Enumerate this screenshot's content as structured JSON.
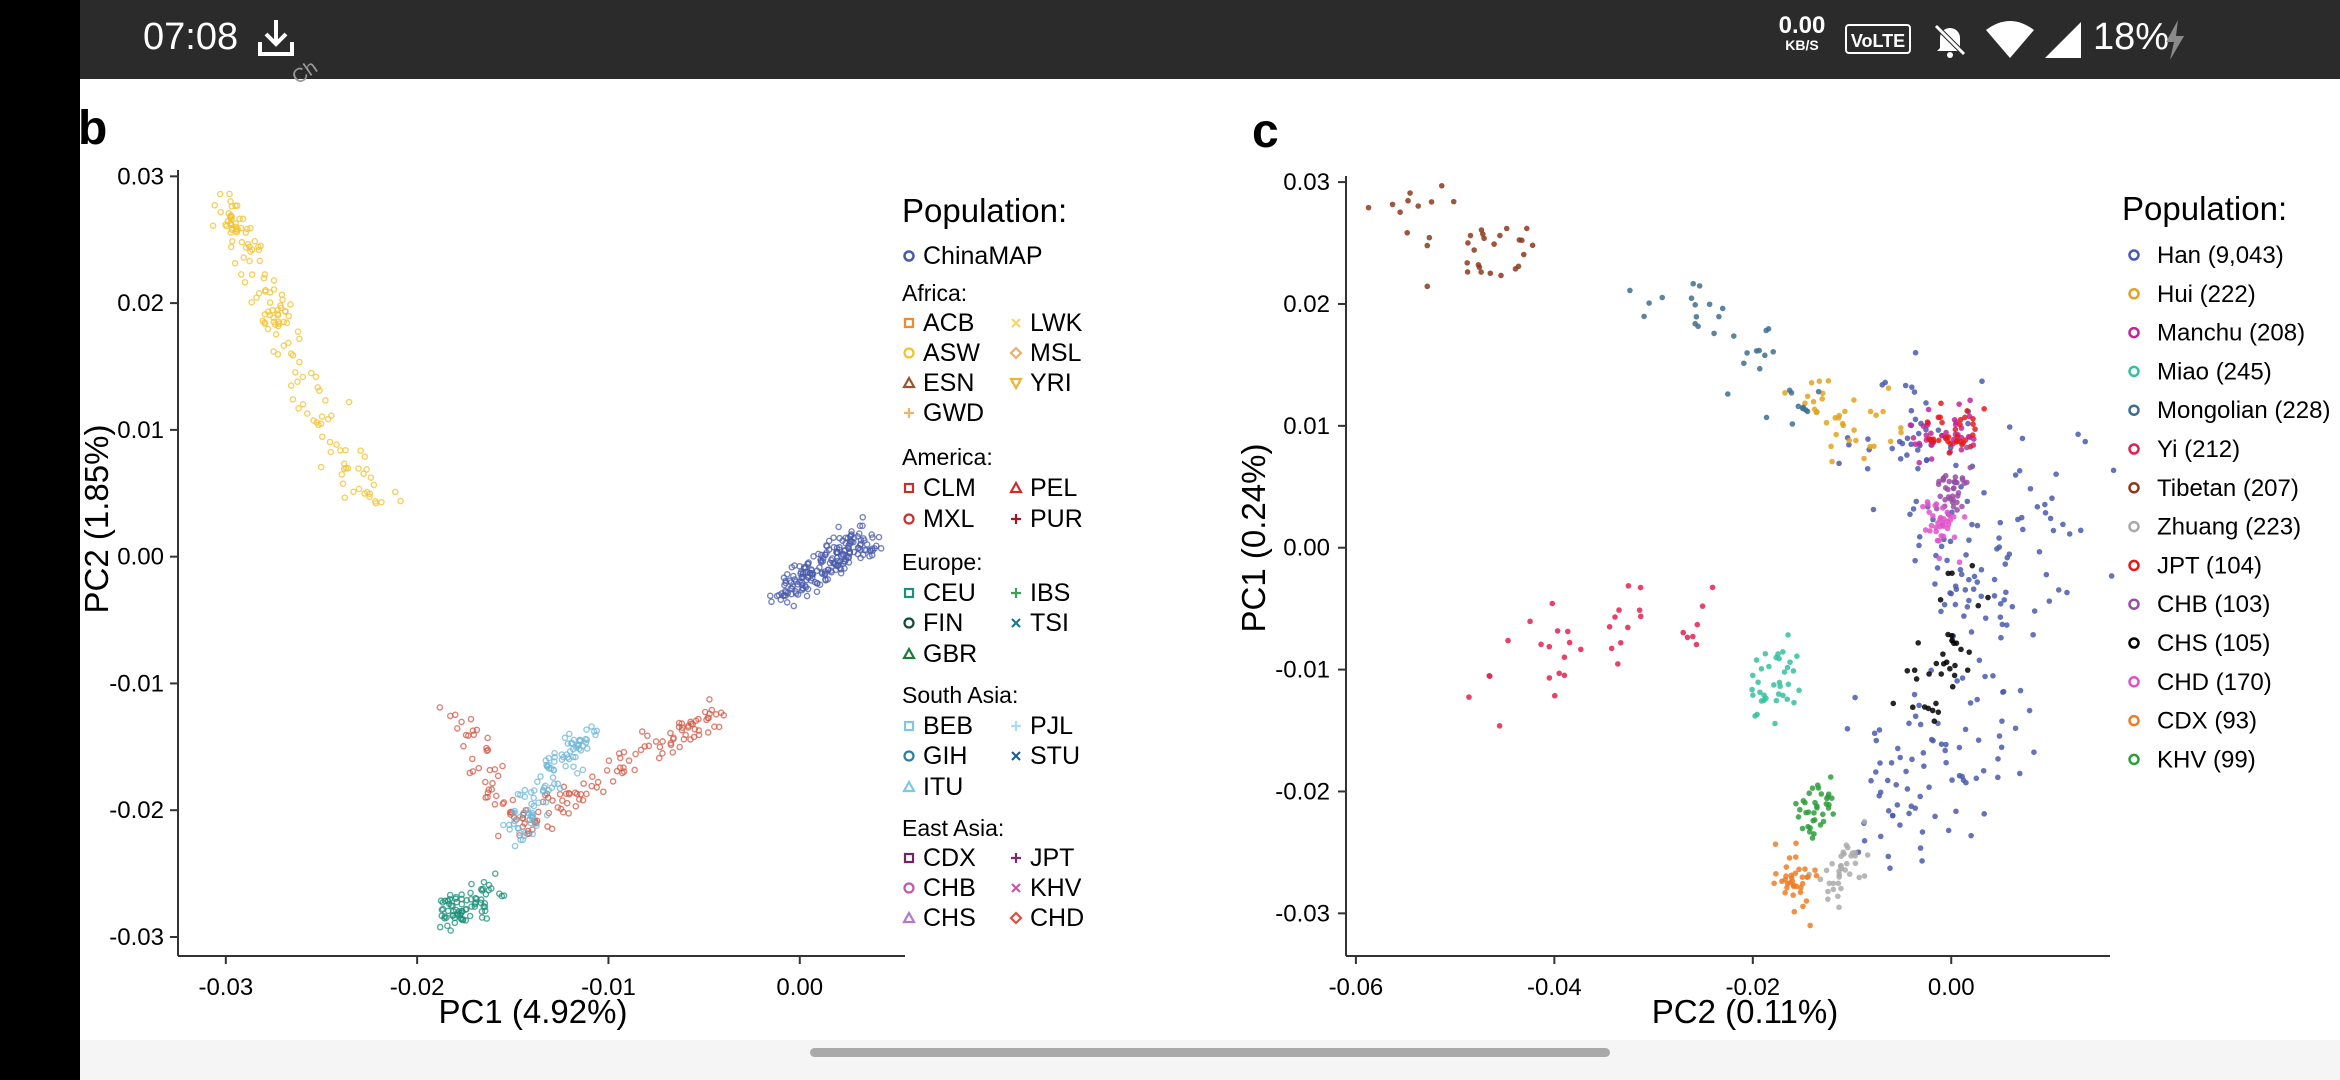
{
  "status_bar": {
    "time": "07:08",
    "net_speed_value": "0.00",
    "net_speed_unit": "KB/S",
    "volte": "VoLTE",
    "battery": "18%"
  },
  "figure": {
    "panel_b": {
      "label": "b",
      "xlabel": "PC1 (4.92%)",
      "ylabel": "PC2 (1.85%)",
      "xticks": [
        "-0.03",
        "-0.02",
        "-0.01",
        "0.00"
      ],
      "yticks": [
        "0.03",
        "0.02",
        "0.01",
        "0.00",
        "-0.01",
        "-0.02",
        "-0.03"
      ],
      "legend_title": "Population:",
      "legend_top": "ChinaMAP",
      "groups": [
        {
          "title": "Africa:",
          "items": [
            "ACB",
            "LWK",
            "ASW",
            "MSL",
            "ESN",
            "YRI",
            "GWD"
          ]
        },
        {
          "title": "America:",
          "items": [
            "CLM",
            "PEL",
            "MXL",
            "PUR"
          ]
        },
        {
          "title": "Europe:",
          "items": [
            "CEU",
            "IBS",
            "FIN",
            "TSI",
            "GBR"
          ]
        },
        {
          "title": "South Asia:",
          "items": [
            "BEB",
            "PJL",
            "GIH",
            "STU",
            "ITU"
          ]
        },
        {
          "title": "East Asia:",
          "items": [
            "CDX",
            "JPT",
            "CHB",
            "KHV",
            "CHS",
            "CHD"
          ]
        }
      ]
    },
    "panel_c": {
      "label": "c",
      "xlabel": "PC2 (0.11%)",
      "ylabel": "PC1 (0.24%)",
      "xticks": [
        "-0.06",
        "-0.04",
        "-0.02",
        "0.00"
      ],
      "yticks": [
        "0.03",
        "0.02",
        "0.01",
        "0.00",
        "-0.01",
        "-0.02",
        "-0.03"
      ],
      "legend_title": "Population:",
      "legend_items": [
        "Han (9,043)",
        "Hui (222)",
        "Manchu (208)",
        "Miao (245)",
        "Mongolian (228)",
        "Yi (212)",
        "Tibetan (207)",
        "Zhuang (223)",
        "JPT (104)",
        "CHB (103)",
        "CHS (105)",
        "CHD (170)",
        "CDX (93)",
        "KHV (99)"
      ]
    }
  },
  "chart_data": [
    {
      "type": "scatter",
      "xlabel": "PC1 (4.92%)",
      "ylabel": "PC2 (1.85%)",
      "xlim": [
        -0.0325,
        0.0055
      ],
      "ylim": [
        -0.0315,
        0.0305
      ],
      "series": [
        {
          "name": "ChinaMAP",
          "color": "#4a5bab",
          "x": [
            -0.001,
            0.0,
            0.001,
            0.002,
            0.003,
            0.0035
          ],
          "y": [
            -0.003,
            -0.002,
            -0.001,
            0.0,
            0.001,
            0.0015
          ]
        },
        {
          "name": "Africa",
          "color": "#f2c22e",
          "x": [
            -0.0305,
            -0.0295,
            -0.0285,
            -0.0275,
            -0.026,
            -0.024,
            -0.022
          ],
          "y": [
            0.0275,
            0.026,
            0.023,
            0.019,
            0.014,
            0.008,
            0.004
          ]
        },
        {
          "name": "America",
          "color": "#d25a46",
          "x": [
            -0.018,
            -0.016,
            -0.014,
            -0.012,
            -0.009,
            -0.006,
            -0.004
          ],
          "y": [
            -0.012,
            -0.018,
            -0.022,
            -0.019,
            -0.016,
            -0.014,
            -0.012
          ]
        },
        {
          "name": "Europe",
          "color": "#1b8f7a",
          "x": [
            -0.0185,
            -0.018,
            -0.017,
            -0.016
          ],
          "y": [
            -0.027,
            -0.0285,
            -0.0275,
            -0.026
          ]
        },
        {
          "name": "South Asia",
          "color": "#6fb7d8",
          "x": [
            -0.015,
            -0.014,
            -0.013,
            -0.012,
            -0.011
          ],
          "y": [
            -0.022,
            -0.02,
            -0.017,
            -0.015,
            -0.014
          ]
        }
      ]
    },
    {
      "type": "scatter",
      "xlabel": "PC2 (0.11%)",
      "ylabel": "PC1 (0.24%)",
      "xlim": [
        -0.061,
        0.016
      ],
      "ylim": [
        -0.0335,
        0.0305
      ],
      "series": [
        {
          "name": "Han (9,043)",
          "color": "#4a5bab",
          "x": [
            -0.004,
            0.0,
            0.004,
            0.008,
            0.002,
            -0.006
          ],
          "y": [
            0.008,
            0.0,
            -0.006,
            0.003,
            -0.016,
            -0.02
          ]
        },
        {
          "name": "Hui (222)",
          "color": "#e0a321",
          "x": [
            -0.014,
            -0.01,
            -0.006
          ],
          "y": [
            0.011,
            0.0105,
            0.01
          ]
        },
        {
          "name": "Manchu (208)",
          "color": "#c2249b",
          "x": [
            -0.002,
            0.001
          ],
          "y": [
            0.009,
            0.0095
          ]
        },
        {
          "name": "Miao (245)",
          "color": "#37c0a0",
          "x": [
            -0.019,
            -0.018,
            -0.017
          ],
          "y": [
            -0.011,
            -0.0115,
            -0.0105
          ]
        },
        {
          "name": "Mongolian (228)",
          "color": "#3e6e8e",
          "x": [
            -0.03,
            -0.025,
            -0.02,
            -0.015
          ],
          "y": [
            0.021,
            0.019,
            0.016,
            0.012
          ]
        },
        {
          "name": "Yi (212)",
          "color": "#e0224f",
          "x": [
            -0.046,
            -0.04,
            -0.033,
            -0.026
          ],
          "y": [
            -0.011,
            -0.008,
            -0.006,
            -0.006
          ]
        },
        {
          "name": "Tibetan (207)",
          "color": "#8b3a1c",
          "x": [
            -0.056,
            -0.052,
            -0.048,
            -0.044
          ],
          "y": [
            0.027,
            0.026,
            0.025,
            0.024
          ]
        },
        {
          "name": "Zhuang (223)",
          "color": "#aaaaaa",
          "x": [
            -0.012,
            -0.01
          ],
          "y": [
            -0.027,
            -0.026
          ]
        },
        {
          "name": "JPT (104)",
          "color": "#e41a1c",
          "x": [
            -0.001,
            0.001
          ],
          "y": [
            0.009,
            0.0095
          ]
        },
        {
          "name": "CHB (103)",
          "color": "#984ea3",
          "x": [
            0.0
          ],
          "y": [
            0.005
          ]
        },
        {
          "name": "CHS (105)",
          "color": "#000000",
          "x": [
            0.002,
            0.0,
            -0.002
          ],
          "y": [
            -0.004,
            -0.008,
            -0.012
          ]
        },
        {
          "name": "CHD (170)",
          "color": "#e052c8",
          "x": [
            -0.001
          ],
          "y": [
            0.002
          ]
        },
        {
          "name": "CDX (93)",
          "color": "#f07d23",
          "x": [
            -0.016,
            -0.015
          ],
          "y": [
            -0.027,
            -0.0285
          ]
        },
        {
          "name": "KHV (99)",
          "color": "#2e9e3c",
          "x": [
            -0.014,
            -0.013
          ],
          "y": [
            -0.022,
            -0.021
          ]
        }
      ]
    }
  ]
}
